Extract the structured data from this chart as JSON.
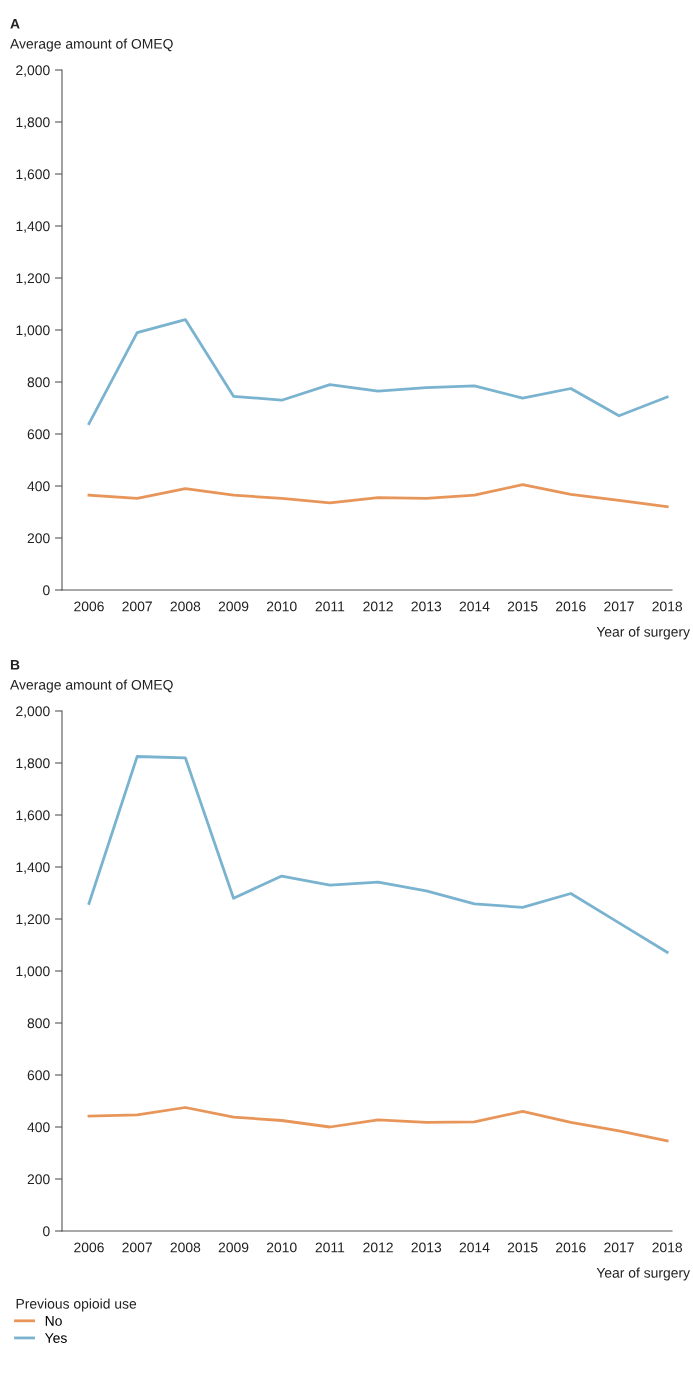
{
  "chart_data": [
    {
      "type": "line",
      "title": "A",
      "ylabel": "Average amount of OMEQ",
      "xlabel": "Year of surgery",
      "categories": [
        "2006",
        "2007",
        "2008",
        "2009",
        "2010",
        "2011",
        "2012",
        "2013",
        "2014",
        "2015",
        "2016",
        "2017",
        "2018"
      ],
      "series": [
        {
          "color": "#e8955a",
          "values": [
            365,
            352,
            390,
            365,
            352,
            335,
            355,
            352,
            365,
            405,
            368,
            345,
            320
          ]
        },
        {
          "color": "#7ab3cf",
          "values": [
            640,
            990,
            1040,
            745,
            730,
            790,
            765,
            778,
            785,
            738,
            775,
            670,
            742
          ]
        }
      ],
      "ylim": [
        0,
        2000
      ],
      "yticks": [
        0,
        {
          "value": 200,
          "label": "200"
        },
        {
          "value": 400,
          "label": "400"
        },
        {
          "value": 600,
          "label": "600"
        },
        {
          "value": 800,
          "label": "800"
        },
        {
          "value": 1000,
          "label": "1,000"
        },
        {
          "value": 1200,
          "label": "1,200"
        },
        {
          "value": 1400,
          "label": "1,400"
        },
        {
          "value": 1600,
          "label": "1,600"
        },
        {
          "value": 1800,
          "label": "1,800"
        },
        {
          "value": 2000,
          "label": "2,000"
        }
      ],
      "grid": false,
      "legend": false,
      "marker": "none",
      "line_style": "solid"
    },
    {
      "type": "line",
      "title": "B",
      "ylabel": "Average amount of OMEQ",
      "xlabel": "Year of surgery",
      "legend_title": "Previous opioid use",
      "categories": [
        "2006",
        "2007",
        "2008",
        "2009",
        "2010",
        "2011",
        "2012",
        "2013",
        "2014",
        "2015",
        "2016",
        "2017",
        "2018"
      ],
      "series": [
        {
          "name": "No",
          "color": "#e8955a",
          "values": [
            442,
            447,
            475,
            438,
            425,
            400,
            427,
            418,
            420,
            460,
            418,
            385,
            347
          ]
        },
        {
          "name": "Yes",
          "color": "#7ab3cf",
          "values": [
            1260,
            1825,
            1820,
            1280,
            1365,
            1330,
            1342,
            1308,
            1258,
            1245,
            1298,
            1185,
            1072
          ]
        }
      ],
      "ylim": [
        0,
        2000
      ],
      "yticks": [
        0,
        {
          "value": 200,
          "label": "200"
        },
        {
          "value": 400,
          "label": "400"
        },
        {
          "value": 600,
          "label": "600"
        },
        {
          "value": 800,
          "label": "800"
        },
        {
          "value": 1000,
          "label": "1,000"
        },
        {
          "value": 1200,
          "label": "1,200"
        },
        {
          "value": 1400,
          "label": "1,400"
        },
        {
          "value": 1600,
          "label": "1,600"
        },
        {
          "value": 1800,
          "label": "1,800"
        },
        {
          "value": 2000,
          "label": "2,000"
        }
      ],
      "grid": false,
      "legend": "bottom left",
      "marker": "none",
      "line_style": "solid"
    }
  ]
}
